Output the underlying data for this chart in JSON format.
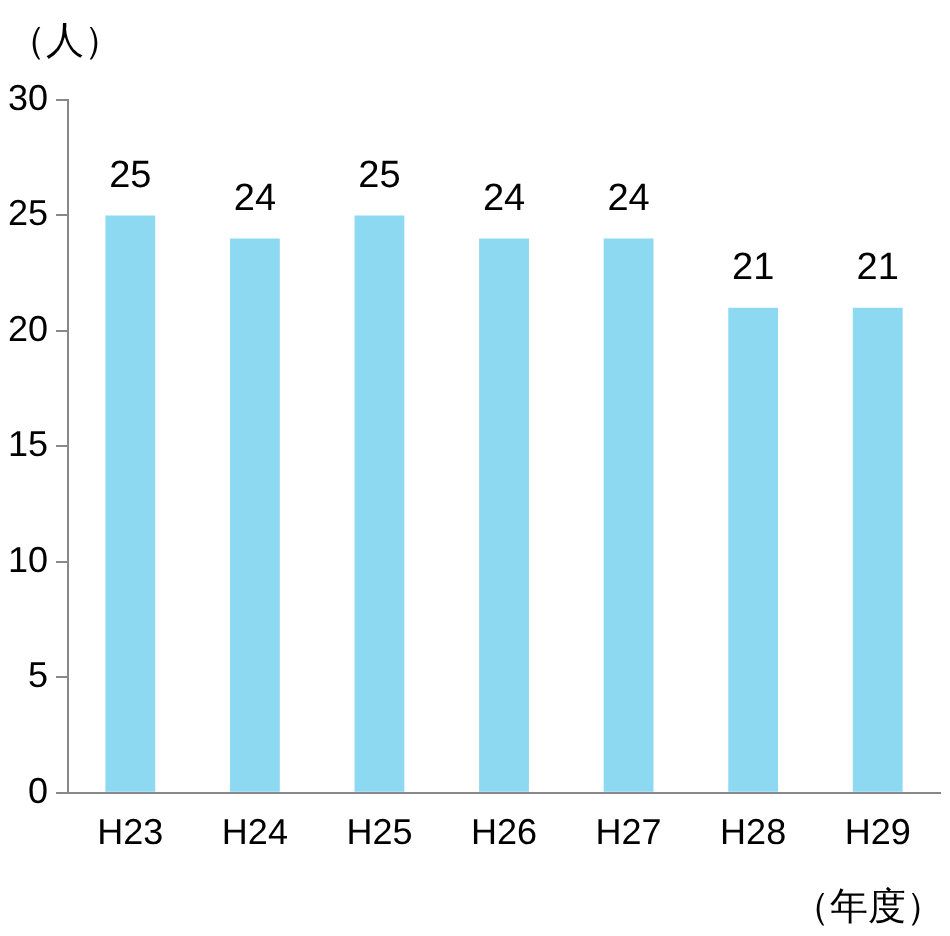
{
  "chart_data": {
    "type": "bar",
    "ylabel": "（人）",
    "xlabel": "（年度）",
    "categories": [
      "H23",
      "H24",
      "H25",
      "H26",
      "H27",
      "H28",
      "H29"
    ],
    "values": [
      25,
      24,
      25,
      24,
      24,
      21,
      21
    ],
    "color": "#8dd9f2",
    "ylim": [
      0,
      30
    ],
    "yticks": [
      0,
      5,
      10,
      15,
      20,
      25,
      30
    ],
    "grid": false,
    "legend": false,
    "data_labels": true
  }
}
